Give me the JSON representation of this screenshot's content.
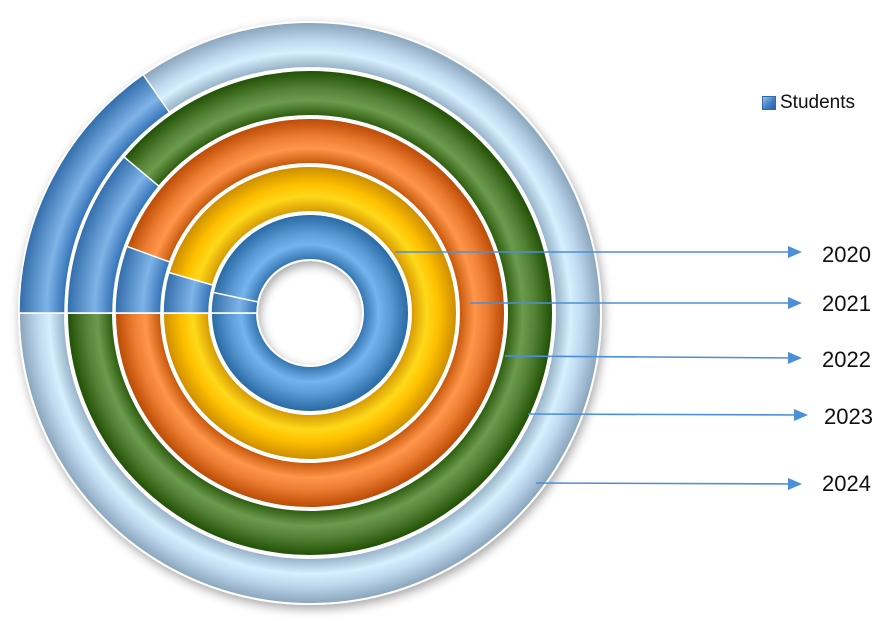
{
  "chart_data": {
    "type": "doughnut",
    "title": "",
    "legend": {
      "position": "right",
      "entries": [
        "Students"
      ]
    },
    "rings": [
      {
        "label": "2020",
        "color": "#5b9bd5",
        "values": {
          "Students": 100
        }
      },
      {
        "label": "2021",
        "color": "#ffc000",
        "values": {
          "Students": 100
        }
      },
      {
        "label": "2022",
        "color": "#ed7d31",
        "values": {
          "Students": 100
        }
      },
      {
        "label": "2023",
        "color": "#548235",
        "values": {
          "Students": 100
        }
      },
      {
        "label": "2024",
        "color": "#bdd7ee",
        "values": {
          "Students": 100
        }
      }
    ],
    "highlight_series": "Students",
    "highlight_color": "#5b9bd5"
  }
}
